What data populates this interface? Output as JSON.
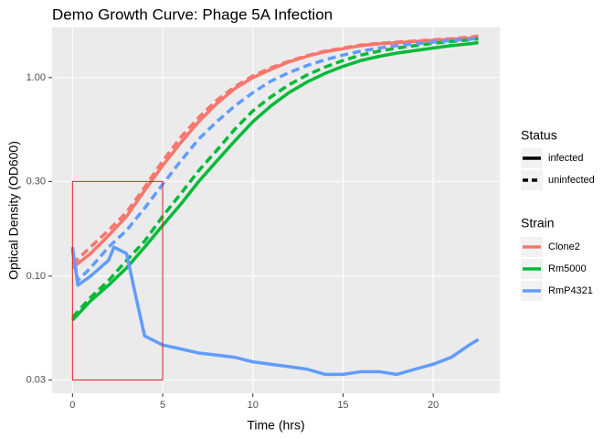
{
  "chart_data": {
    "type": "line",
    "title": "Demo Growth Curve: Phage 5A Infection",
    "x_label": "Time (hrs)",
    "y_label": "Optical Density (OD600)",
    "log_y": true,
    "grid": true,
    "xlim": [
      -1.13,
      23.69
    ],
    "ylim": [
      0.0257,
      1.79
    ],
    "xticks": [
      0,
      5,
      10,
      15,
      20
    ],
    "yticks": [
      {
        "value": 1,
        "label": "1.00"
      },
      {
        "value": 0.3,
        "label": "0.30"
      },
      {
        "value": 0.1,
        "label": "0.10"
      },
      {
        "value": 0.03,
        "label": "0.03"
      }
    ],
    "status_legend": {
      "title": "Status",
      "entries": [
        {
          "label": "infected",
          "linetype": "solid"
        },
        {
          "label": "uninfected",
          "linetype": "dashed"
        }
      ]
    },
    "color_legend_title": "Strain",
    "series": [
      {
        "name": "Clone2",
        "color": "#f8766d",
        "lines": [
          {
            "linetype": "solid",
            "x": [
              0,
              1,
              2,
              3,
              4,
              5,
              6,
              7,
              8,
              9,
              10,
              11,
              12,
              13,
              14,
              15,
              16,
              17,
              18,
              19,
              20,
              21,
              22,
              22.5
            ],
            "values": [
              0.11,
              0.13,
              0.16,
              0.2,
              0.27,
              0.36,
              0.47,
              0.6,
              0.74,
              0.88,
              1.0,
              1.1,
              1.2,
              1.28,
              1.35,
              1.4,
              1.45,
              1.48,
              1.5,
              1.52,
              1.54,
              1.56,
              1.58,
              1.6
            ]
          },
          {
            "linetype": "dashed",
            "x": [
              0,
              1,
              2,
              3,
              4,
              5,
              6,
              7,
              8,
              9,
              10,
              11,
              12,
              13,
              14,
              15,
              16,
              17,
              18,
              19,
              20,
              21,
              22,
              22.5
            ],
            "values": [
              0.115,
              0.14,
              0.17,
              0.21,
              0.28,
              0.38,
              0.5,
              0.63,
              0.77,
              0.9,
              1.02,
              1.12,
              1.21,
              1.29,
              1.36,
              1.41,
              1.46,
              1.49,
              1.51,
              1.53,
              1.55,
              1.57,
              1.6,
              1.62
            ]
          }
        ]
      },
      {
        "name": "Rm5000",
        "color": "#00ba38",
        "lines": [
          {
            "linetype": "solid",
            "x": [
              0,
              1,
              2,
              3,
              4,
              5,
              6,
              7,
              8,
              9,
              10,
              11,
              12,
              13,
              14,
              15,
              16,
              17,
              18,
              19,
              20,
              21,
              22,
              22.5
            ],
            "values": [
              0.06,
              0.075,
              0.09,
              0.11,
              0.14,
              0.18,
              0.23,
              0.3,
              0.38,
              0.48,
              0.6,
              0.72,
              0.84,
              0.95,
              1.05,
              1.14,
              1.22,
              1.28,
              1.33,
              1.37,
              1.41,
              1.45,
              1.48,
              1.5
            ]
          },
          {
            "linetype": "dashed",
            "x": [
              0,
              1,
              2,
              3,
              4,
              5,
              6,
              7,
              8,
              9,
              10,
              11,
              12,
              13,
              14,
              15,
              16,
              17,
              18,
              19,
              20,
              21,
              22,
              22.5
            ],
            "values": [
              0.062,
              0.078,
              0.095,
              0.12,
              0.15,
              0.2,
              0.26,
              0.34,
              0.43,
              0.55,
              0.68,
              0.8,
              0.92,
              1.03,
              1.13,
              1.22,
              1.3,
              1.36,
              1.41,
              1.45,
              1.49,
              1.52,
              1.55,
              1.57
            ]
          }
        ]
      },
      {
        "name": "RmP4321",
        "color": "#619cff",
        "lines": [
          {
            "linetype": "solid",
            "x": [
              0,
              0.3,
              1,
              2,
              2.3,
              3,
              3.5,
              4,
              5,
              6,
              7,
              8,
              9,
              10,
              11,
              12,
              13,
              14,
              15,
              16,
              17,
              18,
              19,
              20,
              21,
              22,
              22.5
            ],
            "values": [
              0.14,
              0.09,
              0.1,
              0.12,
              0.14,
              0.13,
              0.08,
              0.05,
              0.045,
              0.043,
              0.041,
              0.04,
              0.039,
              0.037,
              0.036,
              0.035,
              0.034,
              0.032,
              0.032,
              0.033,
              0.033,
              0.032,
              0.034,
              0.036,
              0.039,
              0.045,
              0.048
            ]
          },
          {
            "linetype": "dashed",
            "x": [
              0,
              0.3,
              1,
              2,
              3,
              4,
              5,
              6,
              7,
              8,
              9,
              10,
              11,
              12,
              13,
              14,
              15,
              16,
              17,
              18,
              19,
              20,
              21,
              22,
              22.5
            ],
            "values": [
              0.135,
              0.095,
              0.11,
              0.14,
              0.17,
              0.22,
              0.29,
              0.38,
              0.49,
              0.6,
              0.72,
              0.84,
              0.96,
              1.06,
              1.15,
              1.23,
              1.3,
              1.36,
              1.41,
              1.45,
              1.48,
              1.51,
              1.54,
              1.56,
              1.58
            ]
          }
        ]
      }
    ],
    "annotation": {
      "type": "rect",
      "xmin": 0,
      "xmax": 5,
      "ymin": 0.03,
      "ymax": 0.3,
      "color": "#e41a1c"
    }
  }
}
